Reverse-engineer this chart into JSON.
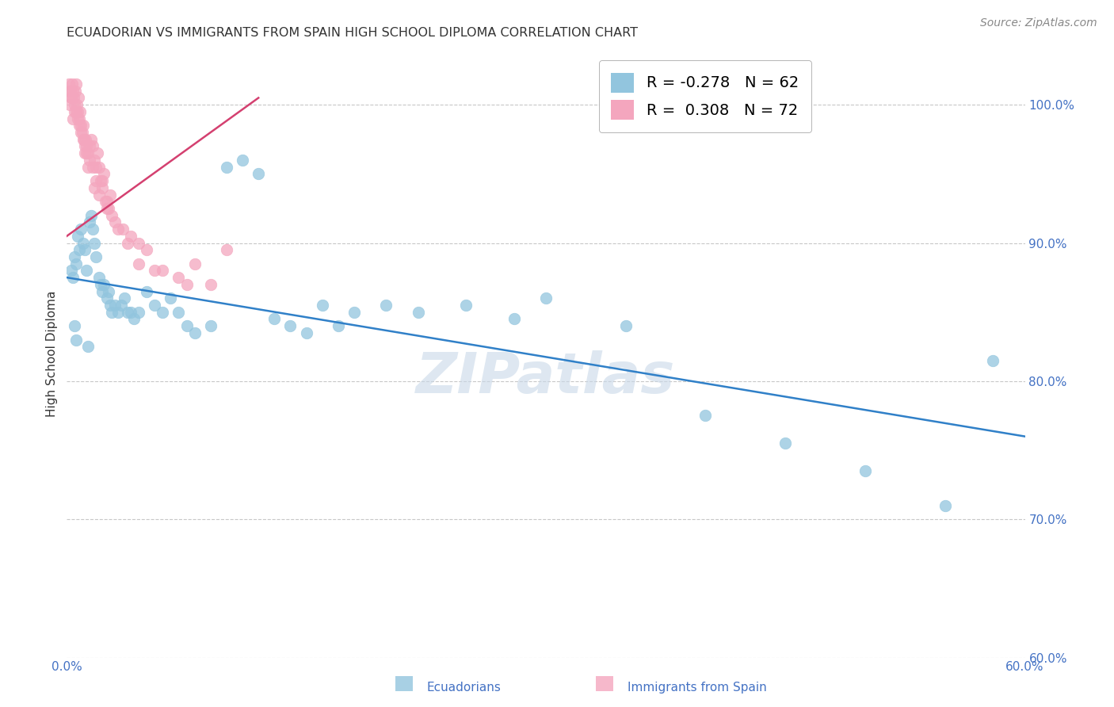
{
  "title": "ECUADORIAN VS IMMIGRANTS FROM SPAIN HIGH SCHOOL DIPLOMA CORRELATION CHART",
  "source": "Source: ZipAtlas.com",
  "ylabel": "High School Diploma",
  "y_ticks": [
    60.0,
    70.0,
    80.0,
    90.0,
    100.0
  ],
  "x_min": 0.0,
  "x_max": 60.0,
  "y_min": 60.0,
  "y_max": 104.0,
  "watermark": "ZIPatlas",
  "legend": {
    "blue_r": "-0.278",
    "blue_n": "62",
    "pink_r": "0.308",
    "pink_n": "72"
  },
  "blue_color": "#92c5de",
  "pink_color": "#f4a6be",
  "blue_line_color": "#3080c8",
  "pink_line_color": "#d44070",
  "blue_line_x0": 0.0,
  "blue_line_y0": 87.5,
  "blue_line_x1": 60.0,
  "blue_line_y1": 76.0,
  "pink_line_x0": 0.0,
  "pink_line_y0": 90.5,
  "pink_line_x1": 12.0,
  "pink_line_y1": 100.5,
  "blue_scatter_x": [
    0.3,
    0.4,
    0.5,
    0.6,
    0.7,
    0.8,
    0.9,
    1.0,
    1.1,
    1.2,
    1.4,
    1.5,
    1.6,
    1.7,
    1.8,
    2.0,
    2.1,
    2.2,
    2.3,
    2.5,
    2.6,
    2.7,
    2.8,
    3.0,
    3.2,
    3.4,
    3.6,
    3.8,
    4.0,
    4.2,
    4.5,
    5.0,
    5.5,
    6.0,
    6.5,
    7.0,
    7.5,
    8.0,
    9.0,
    10.0,
    11.0,
    12.0,
    13.0,
    14.0,
    15.0,
    16.0,
    17.0,
    18.0,
    20.0,
    22.0,
    25.0,
    28.0,
    30.0,
    35.0,
    40.0,
    45.0,
    50.0,
    55.0,
    58.0,
    0.5,
    0.6,
    1.3
  ],
  "blue_scatter_y": [
    88.0,
    87.5,
    89.0,
    88.5,
    90.5,
    89.5,
    91.0,
    90.0,
    89.5,
    88.0,
    91.5,
    92.0,
    91.0,
    90.0,
    89.0,
    87.5,
    87.0,
    86.5,
    87.0,
    86.0,
    86.5,
    85.5,
    85.0,
    85.5,
    85.0,
    85.5,
    86.0,
    85.0,
    85.0,
    84.5,
    85.0,
    86.5,
    85.5,
    85.0,
    86.0,
    85.0,
    84.0,
    83.5,
    84.0,
    95.5,
    96.0,
    95.0,
    84.5,
    84.0,
    83.5,
    85.5,
    84.0,
    85.0,
    85.5,
    85.0,
    85.5,
    84.5,
    86.0,
    84.0,
    77.5,
    75.5,
    73.5,
    71.0,
    81.5,
    84.0,
    83.0,
    82.5
  ],
  "pink_scatter_x": [
    0.15,
    0.2,
    0.25,
    0.3,
    0.35,
    0.4,
    0.45,
    0.5,
    0.55,
    0.6,
    0.65,
    0.7,
    0.75,
    0.8,
    0.85,
    0.9,
    0.95,
    1.0,
    1.05,
    1.1,
    1.15,
    1.2,
    1.3,
    1.4,
    1.5,
    1.6,
    1.7,
    1.8,
    1.9,
    2.0,
    2.1,
    2.2,
    2.3,
    2.5,
    2.7,
    3.0,
    3.5,
    4.0,
    4.5,
    5.0,
    6.0,
    7.0,
    8.0,
    0.2,
    0.4,
    0.6,
    0.8,
    1.0,
    1.2,
    1.4,
    1.6,
    1.8,
    2.0,
    2.2,
    2.4,
    2.6,
    2.8,
    3.2,
    3.8,
    4.5,
    5.5,
    7.5,
    10.0,
    0.3,
    0.5,
    0.7,
    0.9,
    1.1,
    1.3,
    1.7,
    2.5,
    9.0
  ],
  "pink_scatter_y": [
    101.5,
    101.0,
    101.0,
    100.5,
    101.5,
    101.0,
    100.5,
    100.0,
    101.0,
    101.5,
    100.0,
    99.5,
    100.5,
    99.0,
    99.5,
    98.5,
    98.0,
    98.5,
    97.5,
    97.0,
    97.5,
    97.0,
    96.5,
    96.0,
    97.5,
    97.0,
    96.0,
    95.5,
    96.5,
    95.5,
    94.5,
    94.0,
    95.0,
    93.0,
    93.5,
    91.5,
    91.0,
    90.5,
    90.0,
    89.5,
    88.0,
    87.5,
    88.5,
    100.0,
    99.0,
    99.5,
    98.5,
    97.5,
    96.5,
    97.0,
    95.5,
    94.5,
    93.5,
    94.5,
    93.0,
    92.5,
    92.0,
    91.0,
    90.0,
    88.5,
    88.0,
    87.0,
    89.5,
    100.5,
    99.5,
    99.0,
    98.0,
    96.5,
    95.5,
    94.0,
    92.5,
    87.0
  ],
  "background_color": "#ffffff",
  "grid_color": "#c8c8c8",
  "axis_color": "#4472c4",
  "title_color": "#333333",
  "ylabel_color": "#333333",
  "source_color": "#888888"
}
